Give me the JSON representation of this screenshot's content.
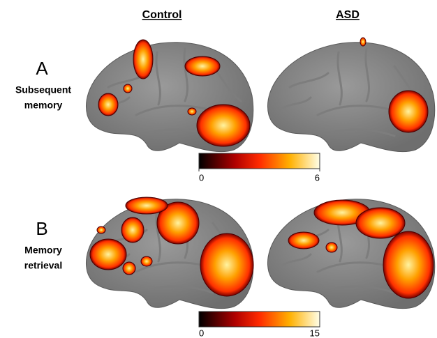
{
  "columns": [
    "Control",
    "ASD"
  ],
  "panels": [
    {
      "letter": "A",
      "label": [
        "Subsequent",
        "memory"
      ],
      "colorbar": {
        "ticks": [
          0,
          6
        ]
      }
    },
    {
      "letter": "B",
      "label": [
        "Memory",
        "retrieval"
      ],
      "colorbar": {
        "ticks": [
          0,
          15
        ]
      }
    }
  ]
}
